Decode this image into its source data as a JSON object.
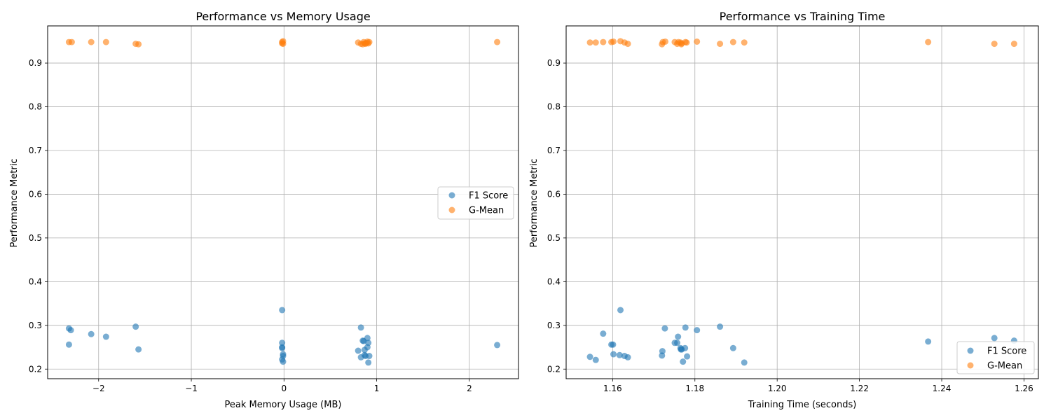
{
  "colors": {
    "f1": "#1f77b4",
    "gmean": "#ff7f0e",
    "grid": "#b0b0b0"
  },
  "chart_data": [
    {
      "type": "scatter",
      "title": "Performance vs Memory Usage",
      "xlabel": "Peak Memory Usage (MB)",
      "ylabel": "Performance Metric",
      "xlim": [
        -2.55,
        2.53
      ],
      "ylim": [
        0.178,
        0.985
      ],
      "xticks": [
        -2,
        -1,
        0,
        1,
        2
      ],
      "xtick_labels": [
        "−2",
        "−1",
        "0",
        "1",
        "2"
      ],
      "yticks": [
        0.2,
        0.3,
        0.4,
        0.5,
        0.6,
        0.7,
        0.8,
        0.9
      ],
      "ytick_labels": [
        "0.2",
        "0.3",
        "0.4",
        "0.5",
        "0.6",
        "0.7",
        "0.8",
        "0.9"
      ],
      "grid": true,
      "legend_position": "center-right",
      "series": [
        {
          "name": "F1 Score",
          "x": [
            -2.32,
            -2.3,
            -2.32,
            -2.08,
            -1.92,
            -1.6,
            -1.57,
            -0.02,
            -0.02,
            -0.02,
            -0.02,
            -0.01,
            -0.01,
            -0.02,
            -0.01,
            0.8,
            0.83,
            0.83,
            0.85,
            0.86,
            0.87,
            0.87,
            0.88,
            0.9,
            0.9,
            0.91,
            0.92,
            0.91,
            2.3
          ],
          "y": [
            0.293,
            0.289,
            0.256,
            0.28,
            0.274,
            0.297,
            0.245,
            0.335,
            0.26,
            0.25,
            0.248,
            0.234,
            0.23,
            0.222,
            0.217,
            0.242,
            0.295,
            0.227,
            0.265,
            0.264,
            0.244,
            0.232,
            0.23,
            0.271,
            0.25,
            0.215,
            0.23,
            0.26,
            0.255
          ]
        },
        {
          "name": "G-Mean",
          "x": [
            -2.32,
            -2.29,
            -2.08,
            -1.92,
            -1.6,
            -1.57,
            -0.02,
            -0.01,
            -0.02,
            -0.01,
            0.8,
            0.83,
            0.85,
            0.86,
            0.87,
            0.88,
            0.89,
            0.9,
            0.91,
            0.92,
            2.3
          ],
          "y": [
            0.948,
            0.948,
            0.948,
            0.948,
            0.944,
            0.943,
            0.948,
            0.95,
            0.945,
            0.944,
            0.947,
            0.944,
            0.943,
            0.948,
            0.945,
            0.944,
            0.946,
            0.949,
            0.945,
            0.948,
            0.948
          ]
        }
      ]
    },
    {
      "type": "scatter",
      "title": "Performance vs Training Time",
      "xlabel": "Training Time (seconds)",
      "ylabel": "Performance Metric",
      "xlim": [
        1.1487,
        1.2635
      ],
      "ylim": [
        0.178,
        0.985
      ],
      "xticks": [
        1.16,
        1.18,
        1.2,
        1.22,
        1.24,
        1.26
      ],
      "xtick_labels": [
        "1.16",
        "1.18",
        "1.20",
        "1.22",
        "1.24",
        "1.26"
      ],
      "yticks": [
        0.2,
        0.3,
        0.4,
        0.5,
        0.6,
        0.7,
        0.8,
        0.9
      ],
      "ytick_labels": [
        "0.2",
        "0.3",
        "0.4",
        "0.5",
        "0.6",
        "0.7",
        "0.8",
        "0.9"
      ],
      "grid": true,
      "legend_position": "lower-right",
      "series": [
        {
          "name": "F1 Score",
          "x": [
            1.1545,
            1.1559,
            1.1577,
            1.1597,
            1.1601,
            1.1602,
            1.1617,
            1.1619,
            1.1629,
            1.1637,
            1.172,
            1.1721,
            1.1727,
            1.1751,
            1.1757,
            1.1759,
            1.1765,
            1.1766,
            1.1768,
            1.1771,
            1.1776,
            1.1781,
            1.1777,
            1.1805,
            1.1861,
            1.1893,
            1.192,
            1.2367,
            1.2528,
            1.2576
          ],
          "y": [
            0.228,
            0.221,
            0.281,
            0.256,
            0.256,
            0.234,
            0.232,
            0.335,
            0.23,
            0.227,
            0.231,
            0.241,
            0.293,
            0.26,
            0.26,
            0.274,
            0.248,
            0.245,
            0.245,
            0.217,
            0.248,
            0.229,
            0.295,
            0.289,
            0.297,
            0.248,
            0.215,
            0.263,
            0.271,
            0.265
          ]
        },
        {
          "name": "G-Mean",
          "x": [
            1.1545,
            1.1559,
            1.1577,
            1.1597,
            1.1602,
            1.1619,
            1.1629,
            1.1637,
            1.172,
            1.1722,
            1.1728,
            1.1751,
            1.1757,
            1.176,
            1.1765,
            1.1767,
            1.1768,
            1.1777,
            1.178,
            1.1805,
            1.1861,
            1.1893,
            1.192,
            1.2367,
            1.2528,
            1.2576
          ],
          "y": [
            0.947,
            0.947,
            0.948,
            0.948,
            0.949,
            0.95,
            0.947,
            0.944,
            0.943,
            0.948,
            0.949,
            0.948,
            0.944,
            0.948,
            0.947,
            0.943,
            0.945,
            0.948,
            0.947,
            0.949,
            0.944,
            0.948,
            0.947,
            0.948,
            0.944,
            0.944
          ]
        }
      ]
    }
  ]
}
